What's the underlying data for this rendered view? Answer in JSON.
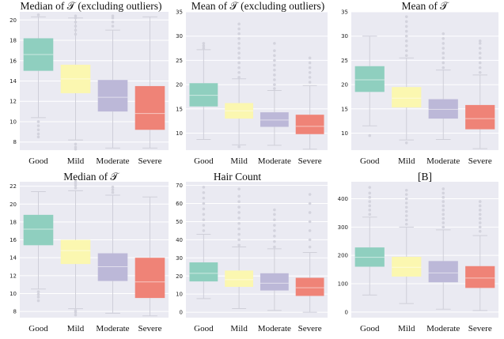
{
  "palette": {
    "panel_bg": "#eaeaf2",
    "grid": "#ffffff",
    "whisker": "#cfcfd9",
    "outlier": "#d3d3dd",
    "Good": "#8fcfbf",
    "Mild": "#fbf7b0",
    "Moderate": "#bcb8d8",
    "Severe": "#ef8377"
  },
  "chart_data": [
    {
      "type": "box",
      "title": "Median of 𝒯 (excluding outliers)",
      "categories": [
        "Good",
        "Mild",
        "Moderate",
        "Severe"
      ],
      "ylim": [
        7.2,
        20.8
      ],
      "yticks": [
        8,
        10,
        12,
        14,
        16,
        18,
        20
      ],
      "boxes": [
        {
          "q1": 15.0,
          "median": 16.6,
          "q3": 18.2,
          "whislo": 10.4,
          "whishi": 20.3,
          "outliers": [
            10.0,
            9.6,
            9.2,
            8.8,
            8.5,
            20.5
          ]
        },
        {
          "q1": 12.8,
          "median": 14.2,
          "q3": 15.6,
          "whislo": 8.2,
          "whishi": 20.2,
          "outliers": [
            7.8,
            7.5,
            7.3,
            20.4,
            20.2,
            19.8,
            19.4,
            19.0,
            18.6
          ]
        },
        {
          "q1": 11.0,
          "median": 12.4,
          "q3": 14.1,
          "whislo": 7.4,
          "whishi": 19.0,
          "outliers": [
            19.4,
            19.8,
            20.2,
            20.4
          ]
        },
        {
          "q1": 9.2,
          "median": 10.8,
          "q3": 13.5,
          "whislo": 7.4,
          "whishi": 20.3,
          "outliers": []
        }
      ]
    },
    {
      "type": "box",
      "title": "Mean of 𝒯 (excluding outliers)",
      "categories": [
        "Good",
        "Mild",
        "Moderate",
        "Severe"
      ],
      "ylim": [
        6.5,
        35
      ],
      "yticks": [
        10,
        15,
        20,
        25,
        30,
        35
      ],
      "boxes": [
        {
          "q1": 15.5,
          "median": 17.8,
          "q3": 20.3,
          "whislo": 8.7,
          "whishi": 27.2,
          "outliers": [
            27.5,
            28.0,
            28.5
          ]
        },
        {
          "q1": 13.0,
          "median": 14.6,
          "q3": 16.2,
          "whislo": 7.6,
          "whishi": 21.2,
          "outliers": [
            7.2,
            21.5,
            22.5,
            23.5,
            24.5,
            25.5,
            26.5,
            27.5,
            28.5,
            29.5,
            30.5,
            31.5,
            32.5
          ]
        },
        {
          "q1": 11.3,
          "median": 12.7,
          "q3": 14.3,
          "whislo": 7.5,
          "whishi": 18.8,
          "outliers": [
            19.2,
            20.0,
            21.0,
            22.0,
            23.0,
            24.0,
            25.0,
            26.0,
            27.0,
            28.5
          ]
        },
        {
          "q1": 9.8,
          "median": 11.4,
          "q3": 13.8,
          "whislo": 6.7,
          "whishi": 19.8,
          "outliers": [
            20.5,
            21.5,
            22.5,
            23.5,
            24.5,
            25.5
          ]
        }
      ]
    },
    {
      "type": "box",
      "title": "Mean of 𝒯",
      "categories": [
        "Good",
        "Mild",
        "Moderate",
        "Severe"
      ],
      "ylim": [
        6.5,
        35
      ],
      "yticks": [
        10,
        15,
        20,
        25,
        30,
        35
      ],
      "boxes": [
        {
          "q1": 18.5,
          "median": 21.0,
          "q3": 23.8,
          "whislo": 11.5,
          "whishi": 30.0,
          "outliers": [
            9.5
          ]
        },
        {
          "q1": 15.3,
          "median": 17.2,
          "q3": 19.5,
          "whislo": 8.6,
          "whishi": 25.5,
          "outliers": [
            8.0,
            26.0,
            27.0,
            28.0,
            29.0,
            30.0,
            31.0,
            32.0,
            33.0,
            34.0
          ]
        },
        {
          "q1": 13.0,
          "median": 14.9,
          "q3": 17.0,
          "whislo": 8.7,
          "whishi": 23.0,
          "outliers": [
            23.5,
            24.5,
            25.5,
            26.5,
            27.5,
            28.5,
            29.5,
            30.5
          ]
        },
        {
          "q1": 10.8,
          "median": 13.0,
          "q3": 15.8,
          "whislo": 6.8,
          "whishi": 22.0,
          "outliers": [
            22.5,
            23.5,
            24.5,
            25.5,
            26.5,
            27.5,
            28.5,
            29.0
          ]
        }
      ]
    },
    {
      "type": "box",
      "title": "Median of 𝒯",
      "categories": [
        "Good",
        "Mild",
        "Moderate",
        "Severe"
      ],
      "ylim": [
        7.3,
        22.5
      ],
      "yticks": [
        8,
        10,
        12,
        14,
        16,
        18,
        20,
        22
      ],
      "boxes": [
        {
          "q1": 15.4,
          "median": 17.2,
          "q3": 18.8,
          "whislo": 10.5,
          "whishi": 21.4,
          "outliers": [
            9.2,
            9.6,
            9.9,
            10.2
          ]
        },
        {
          "q1": 13.3,
          "median": 14.8,
          "q3": 16.0,
          "whislo": 8.3,
          "whishi": 21.5,
          "outliers": [
            7.6,
            7.9,
            8.1,
            21.8,
            22.1,
            22.3,
            22.5
          ]
        },
        {
          "q1": 11.4,
          "median": 13.0,
          "q3": 14.5,
          "whislo": 7.8,
          "whishi": 21.0,
          "outliers": [
            21.3,
            21.6,
            21.9
          ]
        },
        {
          "q1": 9.5,
          "median": 11.3,
          "q3": 14.0,
          "whislo": 7.5,
          "whishi": 20.8,
          "outliers": []
        }
      ]
    },
    {
      "type": "box",
      "title": "Hair Count",
      "categories": [
        "Good",
        "Mild",
        "Moderate",
        "Severe"
      ],
      "ylim": [
        -3,
        72
      ],
      "yticks": [
        0,
        10,
        20,
        30,
        40,
        50,
        60,
        70
      ],
      "boxes": [
        {
          "q1": 17.0,
          "median": 21.5,
          "q3": 27.5,
          "whislo": 7.5,
          "whishi": 43.0,
          "outliers": [
            45.0,
            48.0,
            51.0,
            54.0,
            57.0,
            60.0,
            63.0,
            66.0,
            69.0
          ]
        },
        {
          "q1": 14.0,
          "median": 18.0,
          "q3": 23.0,
          "whislo": 2.0,
          "whishi": 36.0,
          "outliers": [
            37.0,
            40.0,
            43.0,
            46.0,
            49.0,
            52.0,
            55.0,
            58.0,
            61.0,
            64.0,
            68.0
          ]
        },
        {
          "q1": 12.0,
          "median": 16.0,
          "q3": 21.5,
          "whislo": 1.0,
          "whishi": 35.0,
          "outliers": [
            36.0,
            39.0,
            42.0,
            45.0,
            48.0,
            51.0,
            54.0,
            56.5
          ]
        },
        {
          "q1": 9.0,
          "median": 13.5,
          "q3": 19.0,
          "whislo": 0.0,
          "whishi": 33.0,
          "outliers": [
            36.0,
            40.0,
            45.0,
            50.0,
            55.0,
            60.0,
            65.0
          ]
        }
      ]
    },
    {
      "type": "box",
      "title": "[B]",
      "categories": [
        "Good",
        "Mild",
        "Moderate",
        "Severe"
      ],
      "ylim": [
        -20,
        460
      ],
      "yticks": [
        0,
        100,
        200,
        300,
        400
      ],
      "boxes": [
        {
          "q1": 160,
          "median": 193,
          "q3": 228,
          "whislo": 60,
          "whishi": 335,
          "outliers": [
            345,
            360,
            375,
            390,
            405,
            420,
            440
          ]
        },
        {
          "q1": 125,
          "median": 158,
          "q3": 195,
          "whislo": 30,
          "whishi": 300,
          "outliers": [
            310,
            325,
            340,
            355,
            370,
            385,
            400,
            415,
            430
          ]
        },
        {
          "q1": 105,
          "median": 138,
          "q3": 180,
          "whislo": 10,
          "whishi": 290,
          "outliers": [
            300,
            315,
            330,
            345,
            360,
            375,
            390,
            405,
            420,
            435
          ]
        },
        {
          "q1": 85,
          "median": 120,
          "q3": 162,
          "whislo": 5,
          "whishi": 270,
          "outliers": [
            285,
            300,
            315,
            330,
            345,
            360,
            375,
            390
          ]
        }
      ]
    }
  ]
}
